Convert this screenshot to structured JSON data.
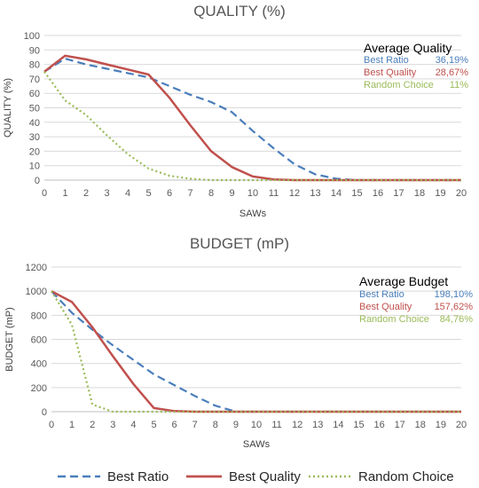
{
  "chart_data": [
    {
      "type": "line",
      "title": "QUALITY (%)",
      "xlabel": "SAWs",
      "ylabel": "QUALITY (%)",
      "ylim": [
        0,
        100
      ],
      "yticks": [
        0,
        10,
        20,
        30,
        40,
        50,
        60,
        70,
        80,
        90,
        100
      ],
      "xlim": [
        0,
        20
      ],
      "x": [
        0,
        1,
        2,
        3,
        4,
        5,
        6,
        7,
        8,
        9,
        10,
        11,
        12,
        13,
        14,
        15,
        16,
        17,
        18,
        19,
        20
      ],
      "grid": "horizontal",
      "series": [
        {
          "name": "Best Ratio",
          "color": "#4a7ebb",
          "dash": "dashed",
          "values": [
            75,
            84,
            80,
            77,
            74,
            71,
            65,
            59,
            54,
            47,
            34,
            22,
            11,
            4,
            1,
            0,
            0,
            0,
            0,
            0,
            0
          ]
        },
        {
          "name": "Best Quality",
          "color": "#c0504d",
          "dash": "solid",
          "values": [
            75,
            86,
            83.5,
            80,
            76.5,
            73,
            57,
            38,
            20,
            9,
            2.5,
            0.5,
            0,
            0,
            0,
            0,
            0,
            0,
            0,
            0,
            0
          ]
        },
        {
          "name": "Random Choice",
          "color": "#9bbb59",
          "dash": "dotted",
          "values": [
            75,
            55,
            45,
            31,
            18,
            8,
            3,
            1,
            0,
            0,
            0,
            0,
            0,
            0,
            0,
            0,
            0,
            0,
            0,
            0,
            0
          ]
        }
      ],
      "annotation": {
        "heading": "Average Quality",
        "rows": [
          {
            "label": "Best Ratio",
            "value": "36,19%",
            "color": "#4a7ebb"
          },
          {
            "label": "Best Quality",
            "value": "28,67%",
            "color": "#c0504d"
          },
          {
            "label": "Random Choice",
            "value": "11%",
            "color": "#9bbb59"
          }
        ]
      }
    },
    {
      "type": "line",
      "title": "BUDGET (mP)",
      "xlabel": "SAWs",
      "ylabel": "BUDGET (mP)",
      "ylim": [
        0,
        1200
      ],
      "yticks": [
        0,
        200,
        400,
        600,
        800,
        1000,
        1200
      ],
      "xlim": [
        0,
        20
      ],
      "x": [
        0,
        1,
        2,
        3,
        4,
        5,
        6,
        7,
        8,
        9,
        10,
        11,
        12,
        13,
        14,
        15,
        16,
        17,
        18,
        19,
        20
      ],
      "grid": "horizontal",
      "series": [
        {
          "name": "Best Ratio",
          "color": "#4a7ebb",
          "dash": "dashed",
          "values": [
            1000,
            820,
            680,
            550,
            430,
            310,
            220,
            130,
            50,
            0,
            0,
            0,
            0,
            0,
            0,
            0,
            0,
            0,
            0,
            0,
            0
          ]
        },
        {
          "name": "Best Quality",
          "color": "#c0504d",
          "dash": "solid",
          "values": [
            1000,
            910,
            700,
            460,
            230,
            30,
            5,
            0,
            0,
            0,
            0,
            0,
            0,
            0,
            0,
            0,
            0,
            0,
            0,
            0,
            0
          ]
        },
        {
          "name": "Random Choice",
          "color": "#9bbb59",
          "dash": "dotted",
          "values": [
            1000,
            720,
            60,
            0,
            0,
            0,
            0,
            0,
            0,
            0,
            0,
            0,
            0,
            0,
            0,
            0,
            0,
            0,
            0,
            0,
            0
          ]
        }
      ],
      "annotation": {
        "heading": "Average Budget",
        "rows": [
          {
            "label": "Best Ratio",
            "value": "198,10%",
            "color": "#4a7ebb"
          },
          {
            "label": "Best Quality",
            "value": "157,62%",
            "color": "#c0504d"
          },
          {
            "label": "Random Choice",
            "value": "84,76%",
            "color": "#9bbb59"
          }
        ]
      }
    }
  ],
  "legend": {
    "placement": "bottom",
    "items": [
      {
        "label": "Best Ratio",
        "color": "#4a7ebb",
        "dash": "dashed"
      },
      {
        "label": "Best Quality",
        "color": "#c0504d",
        "dash": "solid"
      },
      {
        "label": "Random Choice",
        "color": "#9bbb59",
        "dash": "dotted"
      }
    ]
  }
}
